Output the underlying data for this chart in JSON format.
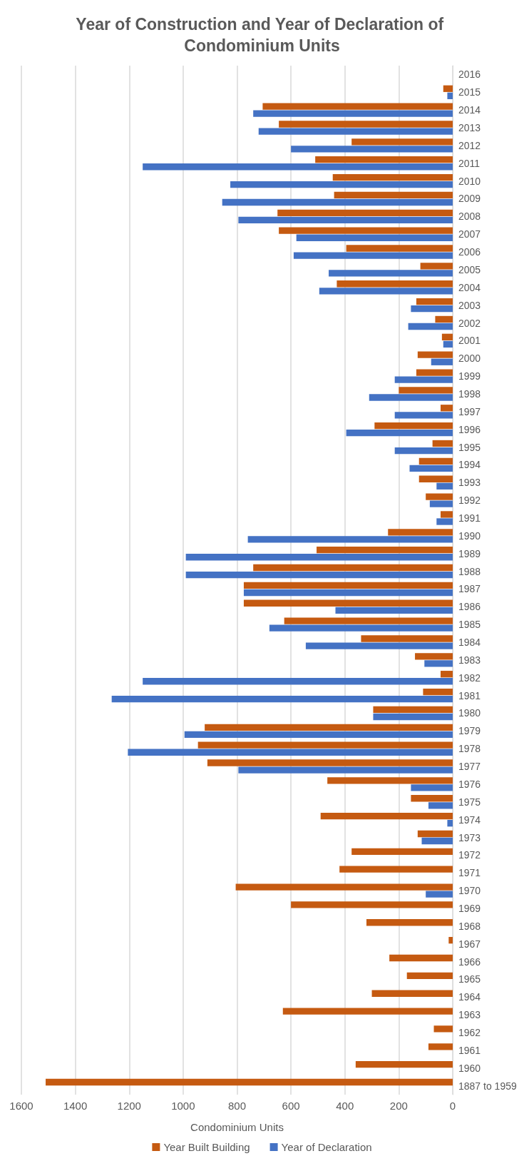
{
  "chart_data": {
    "type": "bar",
    "orientation": "horizontal",
    "title": "Year of Construction and Year of Declaration of Condominium Units",
    "xlabel": "Condominium Units",
    "categories": [
      "2016",
      "2015",
      "2014",
      "2013",
      "2012",
      "2011",
      "2010",
      "2009",
      "2008",
      "2007",
      "2006",
      "2005",
      "2004",
      "2003",
      "2002",
      "2001",
      "2000",
      "1999",
      "1998",
      "1997",
      "1996",
      "1995",
      "1994",
      "1993",
      "1992",
      "1991",
      "1990",
      "1989",
      "1988",
      "1987",
      "1986",
      "1985",
      "1984",
      "1983",
      "1982",
      "1981",
      "1980",
      "1979",
      "1978",
      "1977",
      "1976",
      "1975",
      "1974",
      "1973",
      "1972",
      "1971",
      "1970",
      "1969",
      "1968",
      "1967",
      "1966",
      "1965",
      "1964",
      "1963",
      "1962",
      "1961",
      "1960",
      "1887 to 1959"
    ],
    "series": [
      {
        "name": "Year Built Building",
        "color": "#c55a11",
        "values": [
          0,
          35,
          705,
          645,
          375,
          510,
          445,
          440,
          650,
          645,
          395,
          120,
          430,
          135,
          65,
          40,
          130,
          135,
          200,
          45,
          290,
          75,
          125,
          125,
          100,
          45,
          240,
          505,
          740,
          775,
          775,
          625,
          340,
          140,
          45,
          110,
          295,
          920,
          945,
          910,
          465,
          155,
          490,
          130,
          375,
          420,
          805,
          600,
          320,
          15,
          235,
          170,
          300,
          630,
          70,
          90,
          360,
          1510
        ]
      },
      {
        "name": "Year of Declaration",
        "color": "#4472c4",
        "values": [
          0,
          20,
          740,
          720,
          600,
          1150,
          825,
          855,
          795,
          580,
          590,
          460,
          495,
          155,
          165,
          35,
          80,
          215,
          310,
          215,
          395,
          215,
          160,
          60,
          85,
          60,
          760,
          990,
          990,
          775,
          435,
          680,
          545,
          105,
          1150,
          1265,
          295,
          995,
          1205,
          795,
          155,
          90,
          20,
          115,
          0,
          0,
          100,
          0,
          0,
          0,
          0,
          0,
          0,
          0,
          0,
          0,
          0,
          0
        ]
      }
    ],
    "xlim": [
      1600,
      0
    ],
    "xticks": [
      0,
      200,
      400,
      600,
      800,
      1000,
      1200,
      1400,
      1600
    ],
    "grid": "x",
    "legend": "bottom"
  }
}
